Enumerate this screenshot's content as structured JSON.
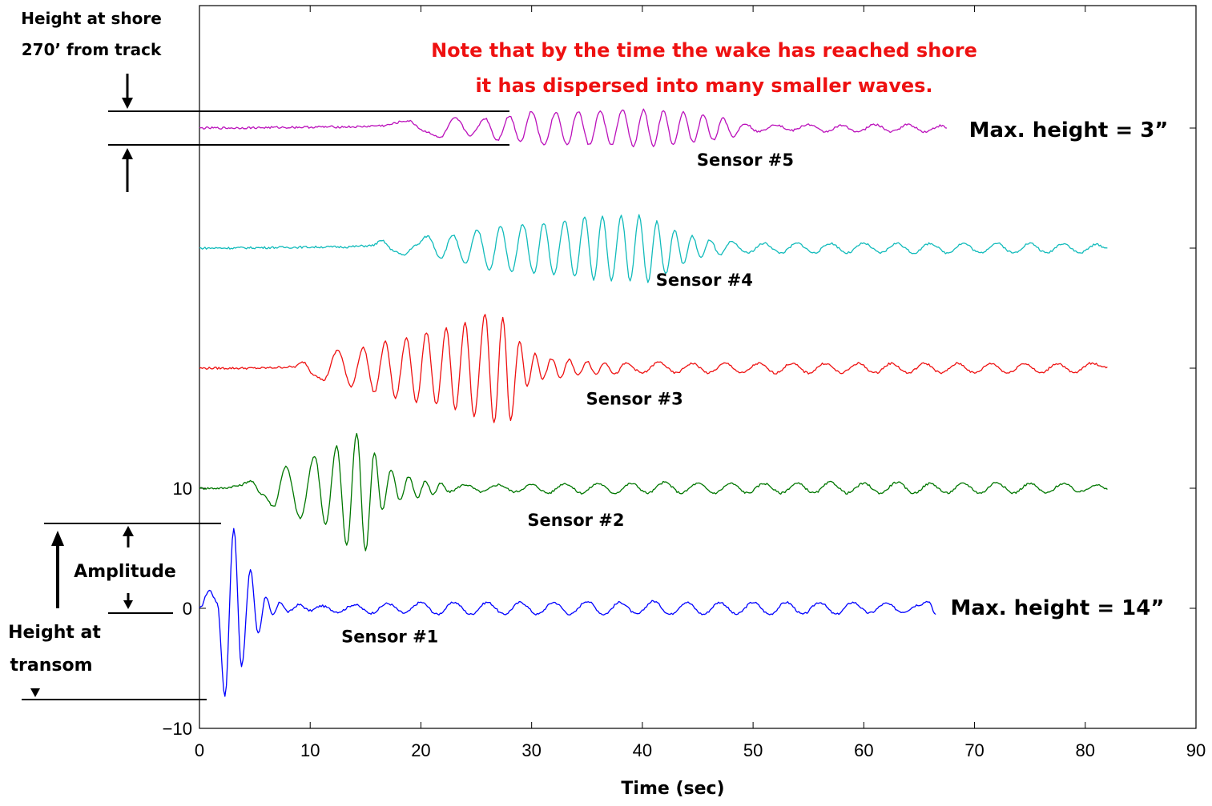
{
  "chart_data": {
    "type": "line",
    "xlabel": "Time (sec)",
    "xlim": [
      0,
      90
    ],
    "ylim": [
      -10,
      100
    ],
    "x_ticks": [
      "0",
      "10",
      "20",
      "30",
      "40",
      "50",
      "60",
      "70",
      "80",
      "90"
    ],
    "y_ticks": [
      "−10",
      "0",
      "10"
    ],
    "note_lines": [
      "Note that by the time the wake has reached shore",
      "it has dispersed into many smaller waves."
    ],
    "annotations": {
      "shore_height": [
        "Height at shore",
        "270’ from track"
      ],
      "amplitude": "Amplitude",
      "transom_height": [
        "Height at",
        "transom"
      ],
      "max_top": "Max. height = 3”",
      "max_bottom": "Max. height = 14”"
    },
    "series": [
      {
        "name": "Sensor #1",
        "color": "#0000ff",
        "offset": 0,
        "t_end": 66.5,
        "peaks": [
          [
            0,
            0
          ],
          [
            0.9,
            1.5
          ],
          [
            1.6,
            0.5
          ],
          [
            2.3,
            -7.3
          ],
          [
            3.1,
            6.7
          ],
          [
            3.8,
            -4.8
          ],
          [
            4.6,
            3.2
          ],
          [
            5.3,
            -2.1
          ],
          [
            6,
            1
          ],
          [
            6.6,
            -0.6
          ],
          [
            7.3,
            0.5
          ],
          [
            8,
            -0.3
          ],
          [
            9,
            0.3
          ],
          [
            10,
            -0.2
          ],
          [
            11,
            0.2
          ],
          [
            12.5,
            -0.3
          ],
          [
            14,
            0.3
          ],
          [
            15.5,
            -0.4
          ],
          [
            17,
            0.4
          ],
          [
            18.5,
            -0.4
          ],
          [
            20,
            0.5
          ],
          [
            21.5,
            -0.5
          ],
          [
            23,
            0.5
          ],
          [
            24.5,
            -0.5
          ],
          [
            26,
            0.5
          ],
          [
            27.5,
            -0.5
          ],
          [
            29,
            0.5
          ],
          [
            30.5,
            -0.5
          ],
          [
            32,
            0.5
          ],
          [
            33.5,
            -0.5
          ],
          [
            35,
            0.6
          ],
          [
            36.5,
            -0.5
          ],
          [
            38,
            0.5
          ],
          [
            39.5,
            -0.5
          ],
          [
            41,
            0.6
          ],
          [
            42.5,
            -0.5
          ],
          [
            44,
            0.5
          ],
          [
            45.5,
            -0.5
          ],
          [
            47,
            0.5
          ],
          [
            48.5,
            -0.5
          ],
          [
            50,
            0.5
          ],
          [
            51.5,
            -0.5
          ],
          [
            53,
            0.5
          ],
          [
            54.5,
            -0.5
          ],
          [
            56,
            0.5
          ],
          [
            57.5,
            -0.5
          ],
          [
            59,
            0.5
          ],
          [
            60.5,
            -0.4
          ],
          [
            62,
            0.4
          ],
          [
            63.5,
            -0.3
          ],
          [
            65,
            0.3
          ],
          [
            65.8,
            0.6
          ],
          [
            66.5,
            -0.5
          ]
        ]
      },
      {
        "name": "Sensor #2",
        "color": "#007700",
        "offset": 10,
        "t_end": 82,
        "peaks": [
          [
            0,
            0
          ],
          [
            2,
            0
          ],
          [
            3.5,
            0.2
          ],
          [
            4.6,
            0.6
          ],
          [
            5.7,
            -0.5
          ],
          [
            6.7,
            -1.5
          ],
          [
            7.8,
            1.8
          ],
          [
            9.1,
            -2.5
          ],
          [
            10.4,
            2.7
          ],
          [
            11.4,
            -3
          ],
          [
            12.4,
            3.5
          ],
          [
            13.3,
            -4.8
          ],
          [
            14.2,
            4.6
          ],
          [
            15,
            -5.2
          ],
          [
            15.8,
            3
          ],
          [
            16.5,
            -1.8
          ],
          [
            17.3,
            1.5
          ],
          [
            18.1,
            -1
          ],
          [
            18.9,
            1
          ],
          [
            19.7,
            -0.8
          ],
          [
            20.4,
            0.6
          ],
          [
            21.1,
            -0.5
          ],
          [
            21.8,
            0.4
          ],
          [
            22.5,
            -0.3
          ],
          [
            24,
            0.3
          ],
          [
            25.5,
            -0.3
          ],
          [
            27,
            0.3
          ],
          [
            28.5,
            -0.3
          ],
          [
            30,
            0.3
          ],
          [
            31.5,
            -0.4
          ],
          [
            33,
            0.4
          ],
          [
            34.5,
            -0.4
          ],
          [
            36,
            0.4
          ],
          [
            37.5,
            -0.4
          ],
          [
            39,
            0.4
          ],
          [
            40.5,
            -0.4
          ],
          [
            42,
            0.5
          ],
          [
            43.5,
            -0.4
          ],
          [
            45,
            0.4
          ],
          [
            46.5,
            -0.4
          ],
          [
            48,
            0.4
          ],
          [
            49.5,
            -0.4
          ],
          [
            51,
            0.4
          ],
          [
            52.5,
            -0.4
          ],
          [
            54,
            0.4
          ],
          [
            55.5,
            -0.4
          ],
          [
            57,
            0.5
          ],
          [
            58.5,
            -0.4
          ],
          [
            60,
            0.4
          ],
          [
            61.5,
            -0.4
          ],
          [
            63,
            0.5
          ],
          [
            64.5,
            -0.4
          ],
          [
            66,
            0.4
          ],
          [
            67.5,
            -0.4
          ],
          [
            69,
            0.4
          ],
          [
            70.5,
            -0.4
          ],
          [
            72,
            0.5
          ],
          [
            73.5,
            -0.4
          ],
          [
            75,
            0.4
          ],
          [
            76.5,
            -0.4
          ],
          [
            78,
            0.4
          ],
          [
            79.5,
            -0.3
          ],
          [
            81,
            0.3
          ],
          [
            82,
            -0.1
          ]
        ]
      },
      {
        "name": "Sensor #3",
        "color": "#ee1111",
        "offset": 20,
        "t_end": 82,
        "peaks": [
          [
            0,
            0
          ],
          [
            5,
            0
          ],
          [
            8.5,
            0.1
          ],
          [
            9.4,
            0.5
          ],
          [
            10.3,
            -0.5
          ],
          [
            11.2,
            -1
          ],
          [
            12.5,
            1.5
          ],
          [
            13.7,
            -1.5
          ],
          [
            14.8,
            1.7
          ],
          [
            15.8,
            -2
          ],
          [
            16.8,
            2.2
          ],
          [
            17.7,
            -2.5
          ],
          [
            18.7,
            2.5
          ],
          [
            19.6,
            -2.8
          ],
          [
            20.5,
            3
          ],
          [
            21.4,
            -3
          ],
          [
            22.3,
            3.3
          ],
          [
            23.1,
            -3.5
          ],
          [
            24,
            3.8
          ],
          [
            24.8,
            -4
          ],
          [
            25.8,
            4.5
          ],
          [
            26.6,
            -4.6
          ],
          [
            27.4,
            4.2
          ],
          [
            28.1,
            -4.3
          ],
          [
            28.9,
            2.2
          ],
          [
            29.6,
            -1.5
          ],
          [
            30.3,
            1.2
          ],
          [
            31,
            -0.9
          ],
          [
            31.8,
            0.8
          ],
          [
            32.6,
            -0.8
          ],
          [
            33.4,
            0.7
          ],
          [
            34.2,
            -0.6
          ],
          [
            35,
            0.6
          ],
          [
            35.8,
            -0.5
          ],
          [
            36.6,
            0.5
          ],
          [
            37.5,
            -0.5
          ],
          [
            38.5,
            0.4
          ],
          [
            40,
            -0.4
          ],
          [
            41.5,
            0.5
          ],
          [
            43,
            -0.4
          ],
          [
            44.5,
            0.4
          ],
          [
            46,
            -0.4
          ],
          [
            47.5,
            0.4
          ],
          [
            49,
            -0.4
          ],
          [
            50.5,
            0.4
          ],
          [
            52,
            -0.4
          ],
          [
            53.5,
            0.4
          ],
          [
            55,
            -0.4
          ],
          [
            56.5,
            0.4
          ],
          [
            58,
            -0.4
          ],
          [
            59.5,
            0.4
          ],
          [
            61,
            -0.4
          ],
          [
            62.5,
            0.4
          ],
          [
            64,
            -0.4
          ],
          [
            65.5,
            0.4
          ],
          [
            67,
            -0.4
          ],
          [
            68.5,
            0.4
          ],
          [
            70,
            -0.4
          ],
          [
            71.5,
            0.4
          ],
          [
            73,
            -0.4
          ],
          [
            74.5,
            0.4
          ],
          [
            76,
            -0.4
          ],
          [
            77.5,
            0.4
          ],
          [
            79,
            -0.4
          ],
          [
            80.5,
            0.4
          ],
          [
            82,
            0.1
          ]
        ]
      },
      {
        "name": "Sensor #4",
        "color": "#11bbbb",
        "offset": 30,
        "t_end": 82,
        "peaks": [
          [
            0,
            0
          ],
          [
            13,
            0.1
          ],
          [
            15.5,
            0.2
          ],
          [
            16.5,
            0.6
          ],
          [
            17.5,
            -0.2
          ],
          [
            18.4,
            -0.6
          ],
          [
            19.5,
            0.2
          ],
          [
            20.6,
            1
          ],
          [
            21.8,
            -0.8
          ],
          [
            22.9,
            1.1
          ],
          [
            24,
            -1.3
          ],
          [
            25.1,
            1.5
          ],
          [
            26.2,
            -1.8
          ],
          [
            27.2,
            1.8
          ],
          [
            28.2,
            -2
          ],
          [
            29.2,
            2
          ],
          [
            30.2,
            -2.1
          ],
          [
            31.1,
            2.1
          ],
          [
            32,
            -2.2
          ],
          [
            33,
            2.3
          ],
          [
            33.9,
            -2.4
          ],
          [
            34.8,
            2.6
          ],
          [
            35.6,
            -2.6
          ],
          [
            36.4,
            2.6
          ],
          [
            37.2,
            -2.7
          ],
          [
            38.1,
            2.7
          ],
          [
            38.9,
            -2.7
          ],
          [
            39.7,
            2.7
          ],
          [
            40.5,
            -2.8
          ],
          [
            41.3,
            2.2
          ],
          [
            42.1,
            -2.2
          ],
          [
            42.9,
            1.5
          ],
          [
            43.7,
            -1.3
          ],
          [
            44.5,
            1
          ],
          [
            45.3,
            -0.8
          ],
          [
            46.1,
            0.7
          ],
          [
            47,
            -0.6
          ],
          [
            48,
            0.5
          ],
          [
            49.5,
            -0.4
          ],
          [
            51,
            0.4
          ],
          [
            52.5,
            -0.4
          ],
          [
            54,
            0.4
          ],
          [
            55.5,
            -0.4
          ],
          [
            57,
            0.4
          ],
          [
            58.5,
            -0.4
          ],
          [
            60,
            0.4
          ],
          [
            61.5,
            -0.4
          ],
          [
            63,
            0.4
          ],
          [
            64.5,
            -0.4
          ],
          [
            66,
            0.4
          ],
          [
            67.5,
            -0.4
          ],
          [
            69,
            0.4
          ],
          [
            70.5,
            -0.4
          ],
          [
            72,
            0.4
          ],
          [
            73.5,
            -0.4
          ],
          [
            75,
            0.4
          ],
          [
            76.5,
            -0.4
          ],
          [
            78,
            0.4
          ],
          [
            79.5,
            -0.4
          ],
          [
            81,
            0.3
          ],
          [
            82,
            0
          ]
        ]
      },
      {
        "name": "Sensor #5",
        "color": "#bb11bb",
        "offset": 40,
        "t_end": 67.5,
        "peaks": [
          [
            0,
            0
          ],
          [
            14,
            0.1
          ],
          [
            16.5,
            0.2
          ],
          [
            18.8,
            0.6
          ],
          [
            20.5,
            -0.3
          ],
          [
            21.7,
            -0.8
          ],
          [
            23.1,
            0.8
          ],
          [
            24.5,
            -0.6
          ],
          [
            25.8,
            0.8
          ],
          [
            26.9,
            -1
          ],
          [
            28,
            1
          ],
          [
            29,
            -1.1
          ],
          [
            30,
            1.4
          ],
          [
            31.1,
            -1.4
          ],
          [
            32.2,
            1.3
          ],
          [
            33.2,
            -1.4
          ],
          [
            34.2,
            1.4
          ],
          [
            35.2,
            -1.4
          ],
          [
            36.2,
            1.4
          ],
          [
            37.2,
            -1.4
          ],
          [
            38.2,
            1.5
          ],
          [
            39.2,
            -1.5
          ],
          [
            40.1,
            1.5
          ],
          [
            41,
            -1.5
          ],
          [
            41.9,
            1.4
          ],
          [
            42.8,
            -1.4
          ],
          [
            43.7,
            1.3
          ],
          [
            44.6,
            -1.2
          ],
          [
            45.5,
            1.1
          ],
          [
            46.4,
            -1
          ],
          [
            47.3,
            0.8
          ],
          [
            48.2,
            -0.7
          ],
          [
            49.2,
            0.4
          ],
          [
            50.5,
            -0.3
          ],
          [
            52,
            0.3
          ],
          [
            53.5,
            -0.2
          ],
          [
            55,
            0.3
          ],
          [
            56.5,
            -0.3
          ],
          [
            58,
            0.2
          ],
          [
            59.5,
            -0.3
          ],
          [
            61,
            0.3
          ],
          [
            62.5,
            -0.3
          ],
          [
            64,
            0.3
          ],
          [
            65.5,
            -0.3
          ],
          [
            67,
            0.2
          ],
          [
            67.5,
            0
          ]
        ]
      }
    ],
    "sensor_label_pos": [
      [
        17.2,
        -2.3
      ],
      [
        34,
        7.4
      ],
      [
        39.3,
        17.5
      ],
      [
        45.6,
        27.4
      ],
      [
        49.3,
        37.4
      ]
    ]
  }
}
